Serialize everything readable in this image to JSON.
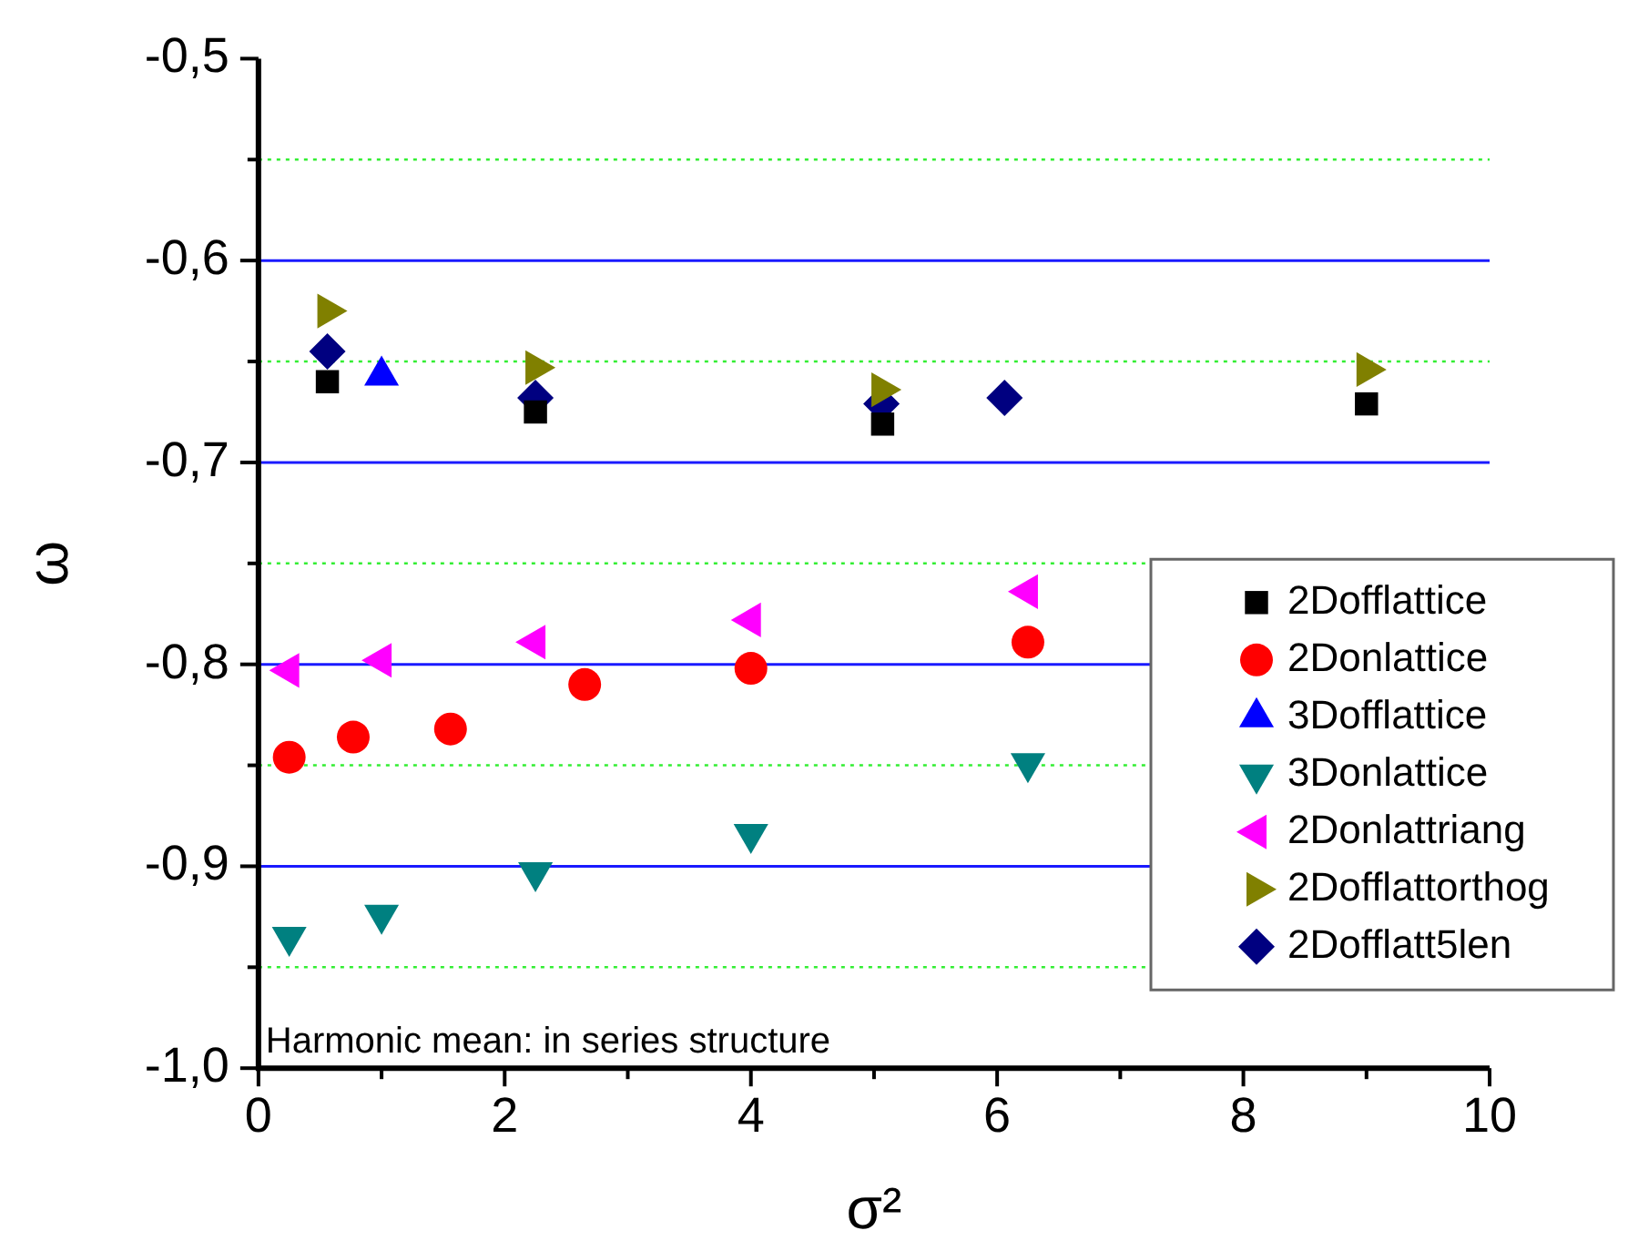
{
  "chart_data": {
    "type": "scatter",
    "xlabel": "σ²",
    "ylabel": "ω",
    "xlim": [
      0,
      10
    ],
    "xticks": [
      0,
      {
        "value": 1,
        "label": null
      },
      2,
      {
        "value": 3,
        "label": null
      },
      4,
      {
        "value": 5,
        "label": null
      },
      6,
      {
        "value": 7,
        "label": null
      },
      8,
      {
        "value": 9,
        "label": null
      },
      10
    ],
    "ylim": [
      -1.0,
      -0.5
    ],
    "yticks": [
      {
        "value": -1.0,
        "label": "-1,0"
      },
      {
        "value": -0.95,
        "label": null
      },
      {
        "value": -0.9,
        "label": "-0,9"
      },
      {
        "value": -0.85,
        "label": null
      },
      {
        "value": -0.8,
        "label": "-0,8"
      },
      {
        "value": -0.75,
        "label": null
      },
      {
        "value": -0.7,
        "label": "-0,7"
      },
      {
        "value": -0.65,
        "label": null
      },
      {
        "value": -0.6,
        "label": "-0,6"
      },
      {
        "value": -0.55,
        "label": null
      },
      {
        "value": -0.5,
        "label": "-0,5"
      }
    ],
    "grid": "y",
    "legend": "right",
    "annotations": [
      "Harmonic mean: in series structure"
    ],
    "series": [
      {
        "name": "2Dofflattice",
        "color": "#000000",
        "marker": "square",
        "x": [
          0.56,
          2.25,
          5.07,
          9.0
        ],
        "values": [
          -0.66,
          -0.675,
          -0.681,
          -0.671
        ]
      },
      {
        "name": "2Donlattice",
        "color": "#ff0000",
        "marker": "circle",
        "x": [
          0.25,
          0.77,
          1.56,
          2.65,
          4.0,
          6.25
        ],
        "values": [
          -0.846,
          -0.836,
          -0.832,
          -0.81,
          -0.802,
          -0.789
        ]
      },
      {
        "name": "3Dofflattice",
        "color": "#0000ff",
        "marker": "triangle",
        "x": [
          1.0
        ],
        "values": [
          -0.657
        ]
      },
      {
        "name": "3Donlattice",
        "color": "#008080",
        "marker": "triangle-down",
        "x": [
          0.25,
          1.0,
          2.25,
          4.0,
          6.25
        ],
        "values": [
          -0.935,
          -0.924,
          -0.903,
          -0.884,
          -0.849
        ]
      },
      {
        "name": "2Donlattriang",
        "color": "#ff00ff",
        "marker": "triangle-left",
        "x": [
          0.25,
          1.0,
          2.25,
          4.0,
          6.25
        ],
        "values": [
          -0.803,
          -0.798,
          -0.789,
          -0.778,
          -0.764
        ]
      },
      {
        "name": "2Dofflattorthog",
        "color": "#808000",
        "marker": "triangle-right",
        "x": [
          0.56,
          2.25,
          5.06,
          9.0
        ],
        "values": [
          -0.625,
          -0.653,
          -0.664,
          -0.654
        ]
      },
      {
        "name": "2Dofflatt5len",
        "color": "#000080",
        "marker": "diamond",
        "x": [
          0.56,
          2.25,
          5.06,
          6.06
        ],
        "values": [
          -0.645,
          -0.668,
          -0.671,
          -0.668
        ]
      }
    ]
  }
}
